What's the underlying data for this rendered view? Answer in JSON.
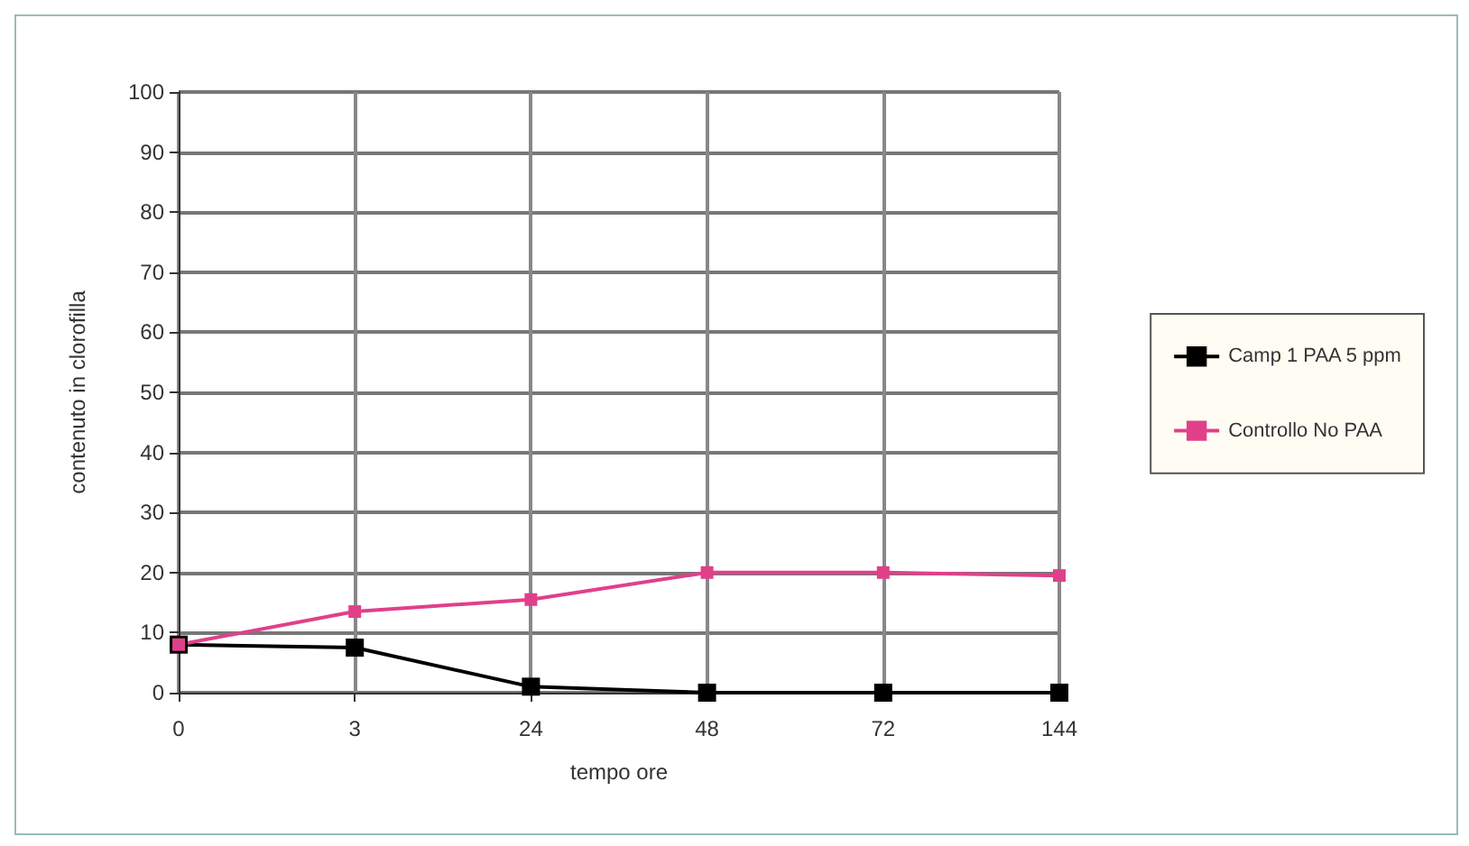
{
  "chart_data": {
    "type": "line",
    "xlabel": "tempo ore",
    "ylabel": "contenuto in clorofilla",
    "categories": [
      "0",
      "3",
      "24",
      "48",
      "72",
      "144"
    ],
    "series": [
      {
        "name": "Camp 1 PAA 5 ppm",
        "color": "#000000",
        "values": [
          8,
          7.5,
          1,
          0,
          0,
          0
        ]
      },
      {
        "name": "Controllo No PAA",
        "color": "#e0408a",
        "values": [
          8,
          13.5,
          15.5,
          20,
          20,
          19.5
        ]
      }
    ],
    "ylim": [
      0,
      100
    ],
    "yticks": [
      0,
      10,
      20,
      30,
      40,
      50,
      60,
      70,
      80,
      90,
      100
    ],
    "grid": true,
    "legend": "right",
    "marker": "square",
    "line_style": "solid"
  }
}
